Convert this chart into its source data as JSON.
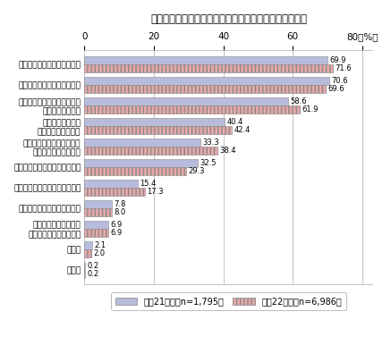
{
  "title": "情報セキュリティに関する不安を抱えている割合が高い",
  "categories": [
    "個人情報の保護に不安がある",
    "ウイルスの感染が心配である",
    "どこまでセキュリティ対策を\n行えばよいか不明",
    "電子的決済手段の\n信頼性に不安がある",
    "セキュリティ脅威が難解で\n具体的に理解できない",
    "違法・有害情報が氾濫している",
    "認証技術の信頼性に不安がある",
    "知的財産の保護に不安がある",
    "送信した電子メールが\n届くかどうかわからない",
    "その他",
    "無回答"
  ],
  "values_2009": [
    69.9,
    70.6,
    58.6,
    40.4,
    33.3,
    32.5,
    15.4,
    7.8,
    6.9,
    2.1,
    0.2
  ],
  "values_2010": [
    71.6,
    69.6,
    61.9,
    42.4,
    38.4,
    29.3,
    17.3,
    8.0,
    6.9,
    2.0,
    0.2
  ],
  "color_2009": "#b8bcdc",
  "color_2010": "#e8a8a8",
  "hatch_2010": "||||",
  "xlim": [
    0,
    80
  ],
  "xticks": [
    0,
    20,
    40,
    60,
    80
  ],
  "legend_2009": "平成21年末（n=1,795）",
  "legend_2010": "平成22年末（n=6,986）",
  "bar_height": 0.38,
  "fontsize_title": 8.5,
  "fontsize_labels": 6.5,
  "fontsize_values": 6,
  "fontsize_legend": 7,
  "fontsize_ticks": 7.5
}
